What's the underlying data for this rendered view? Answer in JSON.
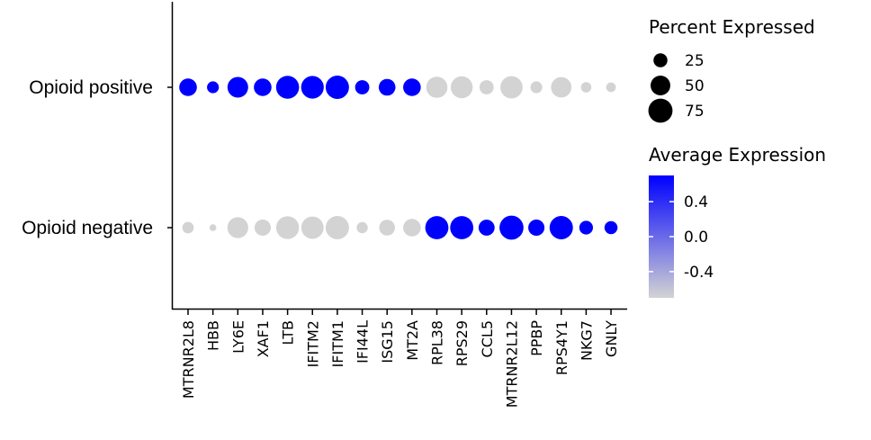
{
  "chart_data": {
    "type": "dot",
    "genes": [
      "MTRNR2L8",
      "HBB",
      "LY6E",
      "XAF1",
      "LTB",
      "IFITM2",
      "IFITM1",
      "IFI44L",
      "ISG15",
      "MT2A",
      "RPL38",
      "RPS29",
      "CCL5",
      "MTRNR2L12",
      "PPBP",
      "RPS4Y1",
      "NKG7",
      "GNLY"
    ],
    "groups": [
      "Opioid positive",
      "Opioid negative"
    ],
    "pct_expressed": [
      [
        40,
        18,
        55,
        40,
        68,
        66,
        70,
        26,
        36,
        40,
        58,
        62,
        26,
        64,
        18,
        54,
        14,
        12
      ],
      [
        17,
        6,
        56,
        34,
        67,
        64,
        70,
        16,
        32,
        40,
        69,
        69,
        33,
        74,
        34,
        70,
        24,
        22
      ]
    ],
    "avg_expression": [
      [
        0.7,
        0.7,
        0.7,
        0.7,
        0.7,
        0.7,
        0.7,
        0.7,
        0.7,
        0.7,
        -0.7,
        -0.7,
        -0.7,
        -0.7,
        -0.7,
        -0.7,
        -0.7,
        -0.7
      ],
      [
        -0.7,
        -0.7,
        -0.7,
        -0.7,
        -0.7,
        -0.7,
        -0.7,
        -0.7,
        -0.7,
        -0.7,
        0.7,
        0.7,
        0.7,
        0.7,
        0.7,
        0.7,
        0.7,
        0.7
      ]
    ],
    "size_legend": {
      "title": "Percent Expressed",
      "values": [
        25,
        50,
        75
      ],
      "labels": [
        "25",
        "50",
        "75"
      ]
    },
    "color_legend": {
      "title": "Average Expression",
      "ticks": [
        0.4,
        0.0,
        -0.4
      ],
      "tick_labels": [
        "0.4",
        "0.0",
        "-0.4"
      ],
      "range": [
        -0.7,
        0.7
      ],
      "low_color": "#d3d3d3",
      "high_color": "#0000ff"
    },
    "grid": false
  }
}
